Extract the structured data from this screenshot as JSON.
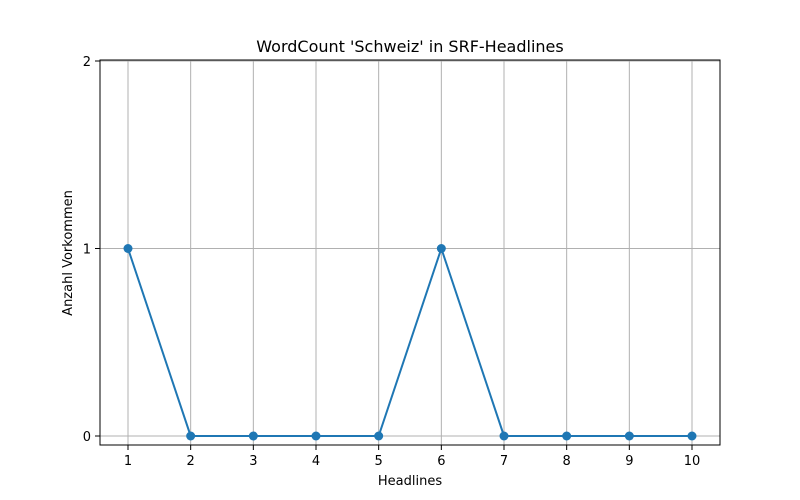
{
  "chart_data": {
    "type": "line",
    "title": "WordCount 'Schweiz' in SRF-Headlines",
    "xlabel": "Headlines",
    "ylabel": "Anzahl Vorkommen",
    "x": [
      1,
      2,
      3,
      4,
      5,
      6,
      7,
      8,
      9,
      10
    ],
    "series": [
      {
        "values": [
          1,
          0,
          0,
          0,
          0,
          1,
          0,
          0,
          0,
          0
        ],
        "color": "#1f77b4",
        "marker": "circle"
      }
    ],
    "xticks": [
      "1",
      "2",
      "3",
      "4",
      "5",
      "6",
      "7",
      "8",
      "9",
      "10"
    ],
    "yticks": [
      "0",
      "1",
      "2"
    ],
    "ylim": [
      0,
      2
    ],
    "grid": true,
    "grid_color": "#b0b0b0"
  }
}
